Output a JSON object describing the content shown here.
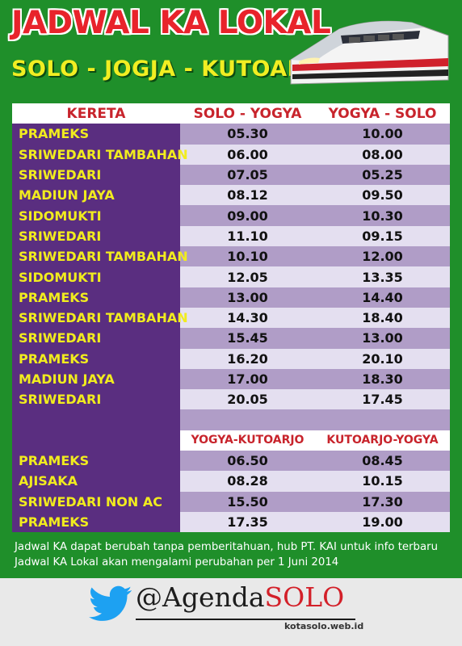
{
  "header": {
    "title": "JADWAL KA LOKAL",
    "subtitle": "SOLO - JOGJA - KUTOARJO"
  },
  "table": {
    "headers": [
      "KERETA",
      "SOLO - YOGYA",
      "YOGYA - SOLO"
    ],
    "rows": [
      [
        "PRAMEKS",
        "05.30",
        "10.00"
      ],
      [
        "SRIWEDARI TAMBAHAN",
        "06.00",
        "08.00"
      ],
      [
        "SRIWEDARI",
        "07.05",
        "05.25"
      ],
      [
        "MADIUN JAYA",
        "08.12",
        "09.50"
      ],
      [
        "SIDOMUKTI",
        "09.00",
        "10.30"
      ],
      [
        "SRIWEDARI",
        "11.10",
        "09.15"
      ],
      [
        "SRIWEDARI TAMBAHAN",
        "10.10",
        "12.00"
      ],
      [
        "SIDOMUKTI",
        "12.05",
        "13.35"
      ],
      [
        "PRAMEKS",
        "13.00",
        "14.40"
      ],
      [
        "SRIWEDARI TAMBAHAN",
        "14.30",
        "18.40"
      ],
      [
        "SRIWEDARI",
        "15.45",
        "13.00"
      ],
      [
        "PRAMEKS",
        "16.20",
        "20.10"
      ],
      [
        "MADIUN JAYA",
        "17.00",
        "18.30"
      ],
      [
        "SRIWEDARI",
        "20.05",
        "17.45"
      ]
    ],
    "sub_headers": [
      "YOGYA-KUTOARJO",
      "KUTOARJO-YOGYA"
    ],
    "rows2": [
      [
        "PRAMEKS",
        "06.50",
        "08.45"
      ],
      [
        "AJISAKA",
        "08.28",
        "10.15"
      ],
      [
        "SRIWEDARI NON AC",
        "15.50",
        "17.30"
      ],
      [
        "PRAMEKS",
        "17.35",
        "19.00"
      ]
    ]
  },
  "notes": [
    "Jadwal KA dapat berubah tanpa pemberitahuan, hub PT. KAI untuk info terbaru",
    "Jadwal KA Lokal akan mengalami perubahan per 1 Juni 2014"
  ],
  "footer": {
    "handle_prefix": "@Agenda",
    "handle_suffix": "SOLO",
    "domain": "kotasolo.web.id"
  },
  "icons": {
    "train": "train-icon",
    "twitter": "twitter-bird-icon"
  },
  "colors": {
    "background": "#1f8f2a",
    "title": "#e8232b",
    "subtitle": "#f1ee22",
    "name_column": "#5a2e80",
    "name_text": "#f1ec1e",
    "row_dark": "#b09dc7",
    "row_light": "#e4dff0",
    "header_text": "#c8242c",
    "twitter": "#1da1f2"
  }
}
